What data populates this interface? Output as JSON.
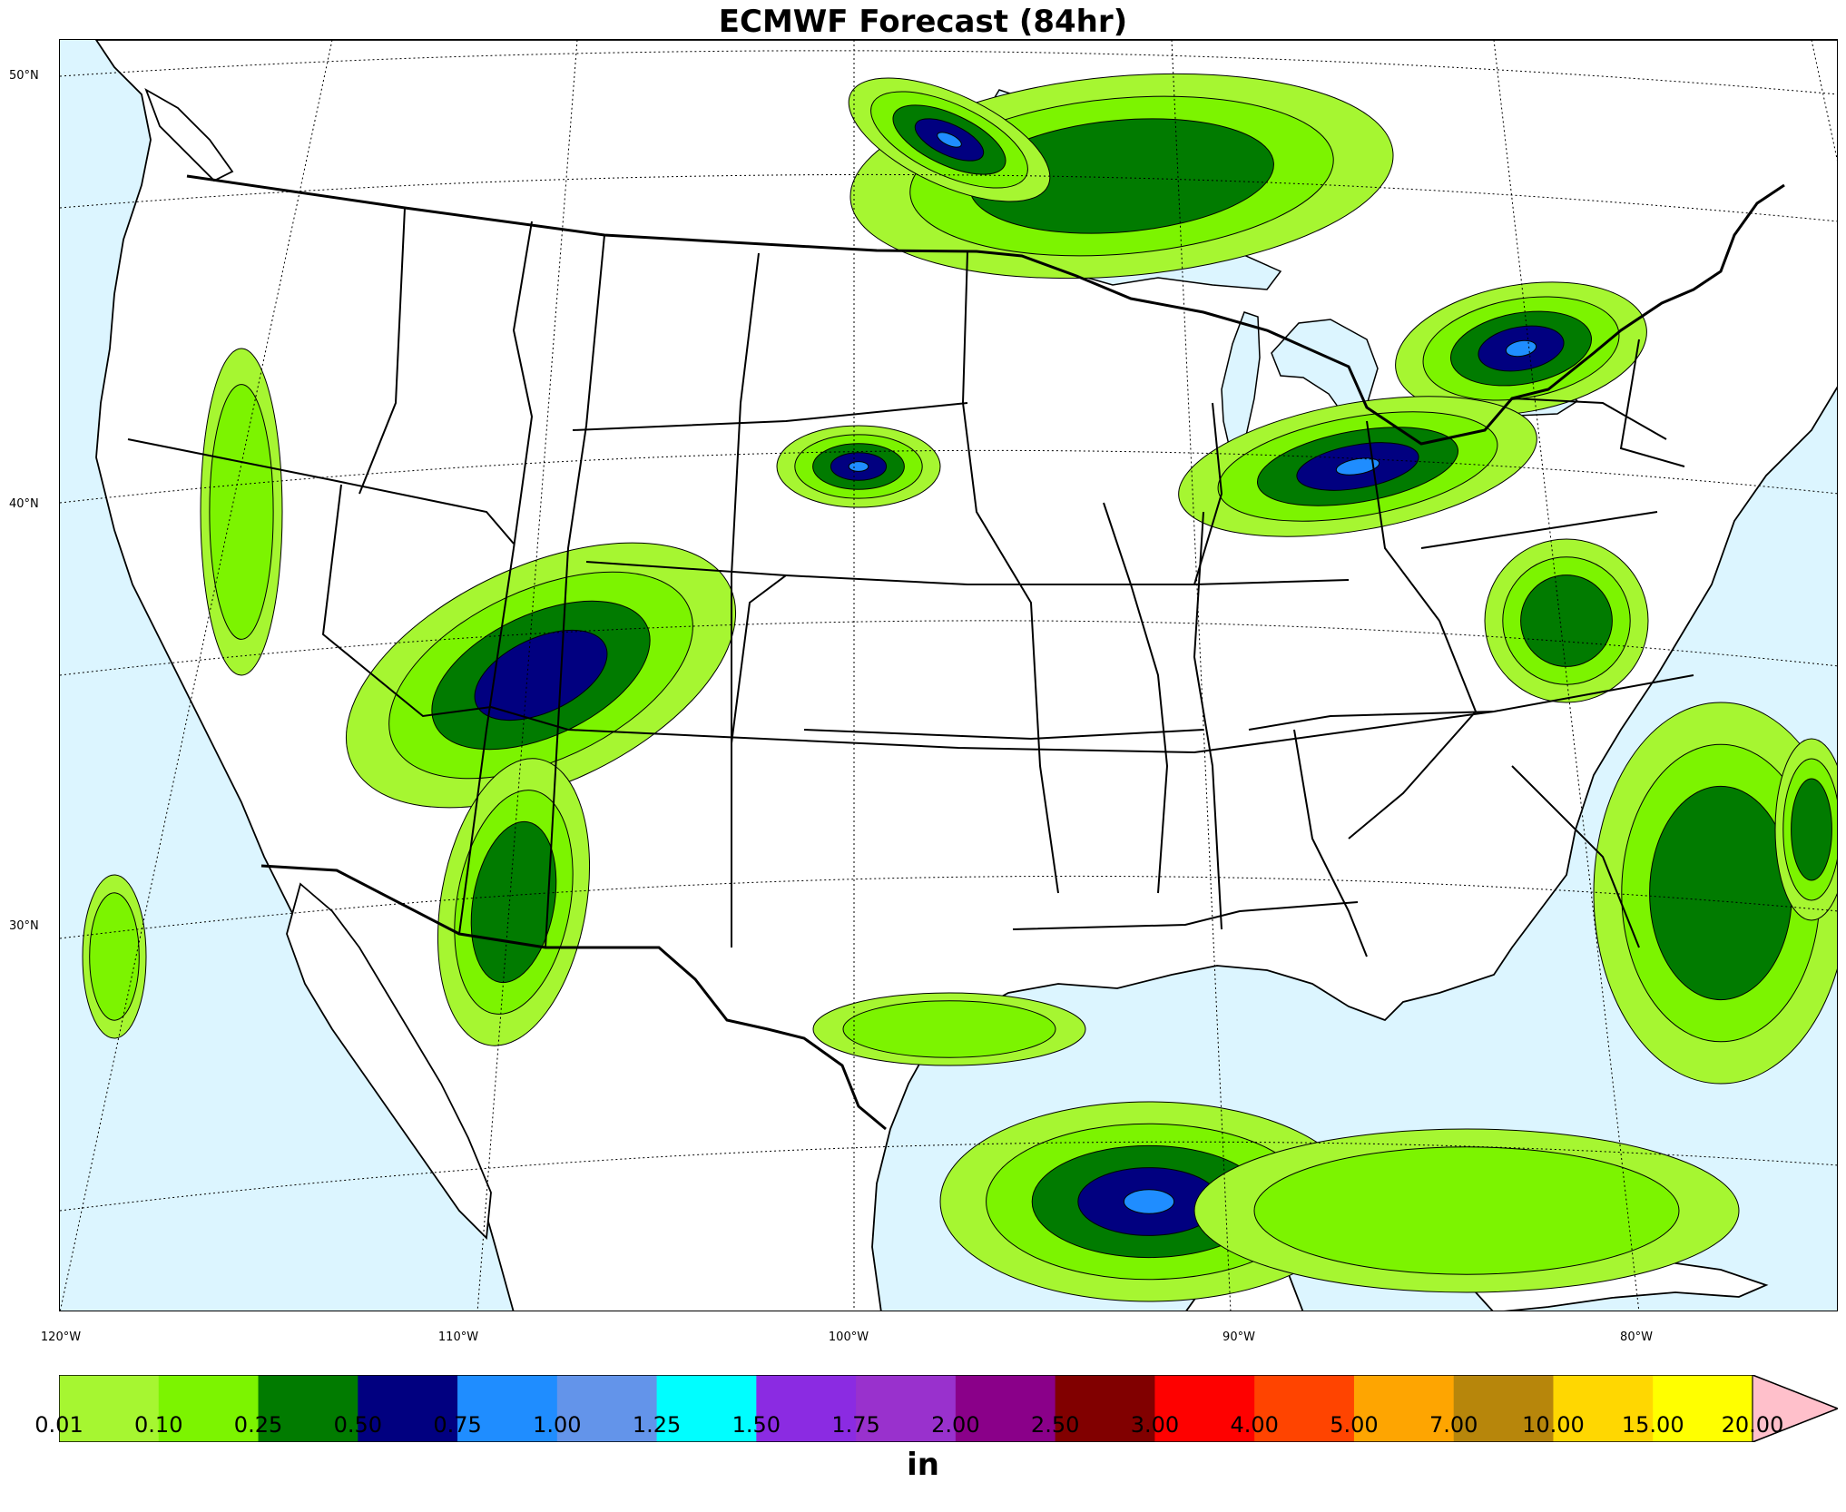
{
  "title": "ECMWF Forecast (84hr)",
  "units_label": "in",
  "latitude_labels": [
    "50°N",
    "40°N",
    "30°N"
  ],
  "longitude_labels": [
    "120°W",
    "110°W",
    "100°W",
    "90°W",
    "80°W"
  ],
  "colorbar": {
    "ticks": [
      "0.01",
      "0.10",
      "0.25",
      "0.50",
      "0.75",
      "1.00",
      "1.25",
      "1.50",
      "1.75",
      "2.00",
      "2.50",
      "3.00",
      "4.00",
      "5.00",
      "7.00",
      "10.00",
      "15.00",
      "20.00"
    ],
    "colors": [
      "#a6f631",
      "#7cf400",
      "#017b00",
      "#010080",
      "#1f8dff",
      "#6394ea",
      "#00feff",
      "#8b2be2",
      "#9931cd",
      "#8a0089",
      "#810000",
      "#fe0100",
      "#ff4400",
      "#fea501",
      "#b7860b",
      "#ffd701",
      "#ffff00"
    ],
    "extend_color": "#ffc0cb"
  },
  "map": {
    "ocean_color": "#dcf5ff",
    "land_color": "#ffffff"
  }
}
